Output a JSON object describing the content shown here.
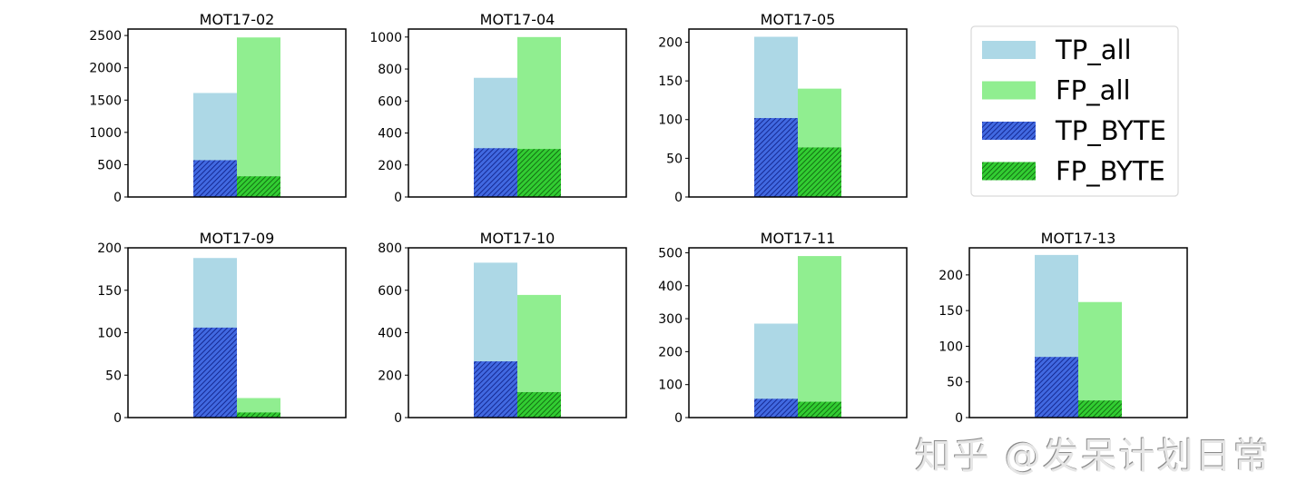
{
  "chart_data": [
    {
      "type": "bar",
      "title": "MOT17-02",
      "ylim": [
        0,
        2600
      ],
      "yticks": [
        0,
        500,
        1000,
        1500,
        2000,
        2500
      ],
      "series": [
        {
          "name": "TP_all",
          "value": 1610
        },
        {
          "name": "FP_all",
          "value": 2470
        },
        {
          "name": "TP_BYTE",
          "value": 570
        },
        {
          "name": "FP_BYTE",
          "value": 320
        }
      ]
    },
    {
      "type": "bar",
      "title": "MOT17-04",
      "ylim": [
        0,
        1050
      ],
      "yticks": [
        0,
        200,
        400,
        600,
        800,
        1000
      ],
      "series": [
        {
          "name": "TP_all",
          "value": 745
        },
        {
          "name": "FP_all",
          "value": 1000
        },
        {
          "name": "TP_BYTE",
          "value": 305
        },
        {
          "name": "FP_BYTE",
          "value": 300
        }
      ]
    },
    {
      "type": "bar",
      "title": "MOT17-05",
      "ylim": [
        0,
        217
      ],
      "yticks": [
        0,
        50,
        100,
        150,
        200
      ],
      "series": [
        {
          "name": "TP_all",
          "value": 207
        },
        {
          "name": "FP_all",
          "value": 140
        },
        {
          "name": "TP_BYTE",
          "value": 102
        },
        {
          "name": "FP_BYTE",
          "value": 64
        }
      ]
    },
    {
      "type": "bar",
      "title": "MOT17-09",
      "ylim": [
        0,
        200
      ],
      "yticks": [
        0,
        50,
        100,
        150,
        200
      ],
      "series": [
        {
          "name": "TP_all",
          "value": 188
        },
        {
          "name": "FP_all",
          "value": 23
        },
        {
          "name": "TP_BYTE",
          "value": 106
        },
        {
          "name": "FP_BYTE",
          "value": 6
        }
      ]
    },
    {
      "type": "bar",
      "title": "MOT17-10",
      "ylim": [
        0,
        800
      ],
      "yticks": [
        0,
        200,
        400,
        600,
        800
      ],
      "series": [
        {
          "name": "TP_all",
          "value": 730
        },
        {
          "name": "FP_all",
          "value": 578
        },
        {
          "name": "TP_BYTE",
          "value": 265
        },
        {
          "name": "FP_BYTE",
          "value": 120
        }
      ]
    },
    {
      "type": "bar",
      "title": "MOT17-11",
      "ylim": [
        0,
        515
      ],
      "yticks": [
        0,
        100,
        200,
        300,
        400,
        500
      ],
      "series": [
        {
          "name": "TP_all",
          "value": 285
        },
        {
          "name": "FP_all",
          "value": 490
        },
        {
          "name": "TP_BYTE",
          "value": 57
        },
        {
          "name": "FP_BYTE",
          "value": 48
        }
      ]
    },
    {
      "type": "bar",
      "title": "MOT17-13",
      "ylim": [
        0,
        238
      ],
      "yticks": [
        0,
        50,
        100,
        150,
        200
      ],
      "series": [
        {
          "name": "TP_all",
          "value": 228
        },
        {
          "name": "FP_all",
          "value": 162
        },
        {
          "name": "TP_BYTE",
          "value": 85
        },
        {
          "name": "FP_BYTE",
          "value": 24
        }
      ]
    }
  ],
  "legend": {
    "position": "top-right",
    "entries": [
      {
        "label": "TP_all",
        "color": "#add8e6",
        "hatch": false
      },
      {
        "label": "FP_all",
        "color": "#90ee90",
        "hatch": false
      },
      {
        "label": "TP_BYTE",
        "color": "#4169e1",
        "hatch": true
      },
      {
        "label": "FP_BYTE",
        "color": "#32cd32",
        "hatch": true
      }
    ]
  },
  "colors": {
    "tp_all": "#add8e6",
    "fp_all": "#90ee90",
    "tp_byte": "#4169e1",
    "fp_byte": "#32cd32",
    "hatch_line": "#0b1a80",
    "hatch_line_green": "#0c5a0c"
  },
  "watermark": "知乎 @发呆计划日常"
}
